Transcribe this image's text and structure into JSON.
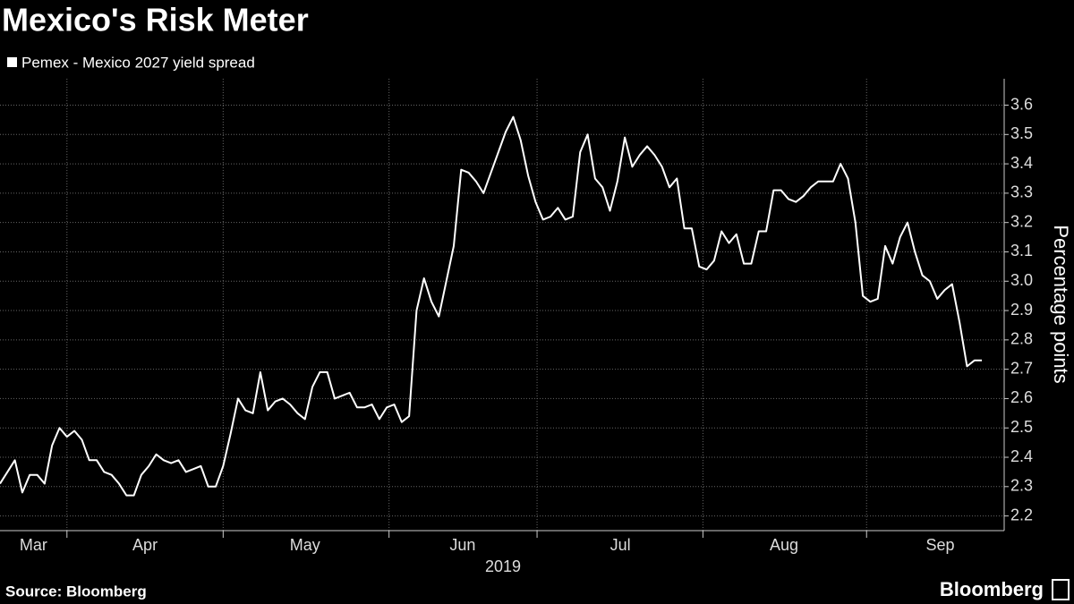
{
  "chart_data": {
    "type": "line",
    "title": "Mexico's Risk Meter",
    "source": "Source: Bloomberg",
    "brand": "Bloomberg",
    "y_label": "Percentage points",
    "year_label": "2019",
    "series": [
      {
        "name": "Pemex - Mexico 2027 yield spread",
        "color": "#ffffff",
        "values": [
          2.31,
          2.35,
          2.39,
          2.28,
          2.34,
          2.34,
          2.31,
          2.44,
          2.5,
          2.47,
          2.49,
          2.46,
          2.39,
          2.39,
          2.35,
          2.34,
          2.31,
          2.27,
          2.27,
          2.34,
          2.37,
          2.41,
          2.39,
          2.38,
          2.39,
          2.35,
          2.36,
          2.37,
          2.3,
          2.3,
          2.37,
          2.48,
          2.6,
          2.56,
          2.55,
          2.69,
          2.56,
          2.59,
          2.6,
          2.58,
          2.55,
          2.53,
          2.64,
          2.69,
          2.69,
          2.6,
          2.61,
          2.62,
          2.57,
          2.57,
          2.58,
          2.53,
          2.57,
          2.58,
          2.52,
          2.54,
          2.9,
          3.01,
          2.93,
          2.88,
          3.0,
          3.12,
          3.38,
          3.37,
          3.34,
          3.3,
          3.37,
          3.44,
          3.51,
          3.56,
          3.48,
          3.36,
          3.27,
          3.21,
          3.22,
          3.25,
          3.21,
          3.22,
          3.44,
          3.5,
          3.35,
          3.32,
          3.24,
          3.34,
          3.49,
          3.39,
          3.43,
          3.46,
          3.43,
          3.39,
          3.32,
          3.35,
          3.18,
          3.18,
          3.05,
          3.04,
          3.07,
          3.17,
          3.13,
          3.16,
          3.06,
          3.06,
          3.17,
          3.17,
          3.31,
          3.31,
          3.28,
          3.27,
          3.29,
          3.32,
          3.34,
          3.34,
          3.34,
          3.4,
          3.35,
          3.2,
          2.95,
          2.93,
          2.94,
          3.12,
          3.06,
          3.15,
          3.2,
          3.1,
          3.02,
          3.0,
          2.94,
          2.97,
          2.99,
          2.86,
          2.71,
          2.73,
          2.73
        ]
      }
    ],
    "xlim": [
      0,
      135
    ],
    "xticks": [
      {
        "value": 4.5,
        "label": "Mar"
      },
      {
        "value": 19.5,
        "label": "Apr"
      },
      {
        "value": 41,
        "label": "May"
      },
      {
        "value": 62.2,
        "label": "Jun"
      },
      {
        "value": 83.4,
        "label": "Jul"
      },
      {
        "value": 105.4,
        "label": "Aug"
      },
      {
        "value": 126.4,
        "label": "Sep"
      }
    ],
    "month_boundaries": [
      9,
      30,
      52.3,
      72.2,
      94.5,
      116.5
    ],
    "ylim": [
      2.15,
      3.69
    ],
    "yticks": [
      2.2,
      2.3,
      2.4,
      2.5,
      2.6,
      2.7,
      2.8,
      2.9,
      {
        "value": 3,
        "label": "3.0"
      },
      3.1,
      3.2,
      3.3,
      3.4,
      3.5,
      3.6
    ],
    "grid": true
  }
}
